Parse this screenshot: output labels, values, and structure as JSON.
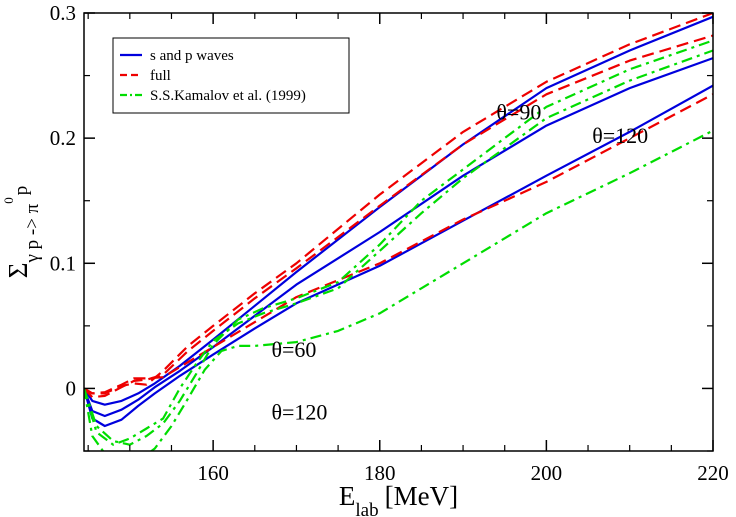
{
  "chart_data": {
    "type": "line",
    "xlabel": "E",
    "xlabel_sub": "lab",
    "xlabel_unit": "[MeV]",
    "ylabel_main": "Σ",
    "ylabel_sub": "γ p -> π",
    "ylabel_sup": "0",
    "ylabel_tail": "p",
    "xlim": [
      144.5,
      220
    ],
    "ylim": [
      -0.05,
      0.3
    ],
    "x_ticks": [
      160,
      180,
      200,
      220
    ],
    "x_tick_labels": [
      "160",
      "180",
      "200",
      "220"
    ],
    "y_ticks": [
      0,
      0.1,
      0.2,
      0.3
    ],
    "y_tick_labels": [
      "0",
      "0.1",
      "0.2",
      "0.3"
    ],
    "grid": false,
    "legend_position": "top-left",
    "legend": [
      {
        "label": "s and p waves",
        "color": "#0000dd",
        "style": "solid"
      },
      {
        "label": "full",
        "color": "#ee0000",
        "style": "dashed"
      },
      {
        "label": "S.S.Kamalov et al. (1999)",
        "color": "#00dd00",
        "style": "dashdot"
      }
    ],
    "annotations": [
      {
        "text": "θ=90",
        "at": [
          194,
          0.215
        ]
      },
      {
        "text": "θ=120",
        "at": [
          205.5,
          0.196
        ]
      },
      {
        "text": "θ=60",
        "at": [
          167,
          0.025
        ]
      },
      {
        "text": "θ=120",
        "at": [
          167,
          -0.025
        ]
      }
    ],
    "series": [
      {
        "name": "s and p waves",
        "group": "θ=90",
        "color": "#0000dd",
        "style": "solid",
        "x": [
          144.5,
          145.5,
          147,
          149,
          151,
          153,
          156,
          160,
          165,
          170,
          180,
          190,
          200,
          210,
          220
        ],
        "y": [
          0,
          -0.01,
          -0.013,
          -0.01,
          -0.004,
          0.004,
          0.018,
          0.039,
          0.066,
          0.093,
          0.145,
          0.195,
          0.24,
          0.27,
          0.297
        ]
      },
      {
        "name": "s and p waves",
        "group": "θ=60",
        "color": "#0000dd",
        "style": "solid",
        "x": [
          144.5,
          145.5,
          147,
          149,
          151,
          153,
          156,
          160,
          165,
          170,
          180,
          190,
          200,
          210,
          220
        ],
        "y": [
          0,
          -0.018,
          -0.022,
          -0.017,
          -0.009,
          0.001,
          0.014,
          0.033,
          0.058,
          0.083,
          0.125,
          0.17,
          0.21,
          0.24,
          0.264
        ]
      },
      {
        "name": "s and p waves",
        "group": "θ=120",
        "color": "#0000dd",
        "style": "solid",
        "x": [
          144.5,
          145.5,
          147,
          149,
          151,
          153,
          156,
          160,
          165,
          170,
          180,
          190,
          200,
          210,
          220
        ],
        "y": [
          0,
          -0.024,
          -0.03,
          -0.025,
          -0.014,
          -0.004,
          0.01,
          0.027,
          0.048,
          0.068,
          0.098,
          0.134,
          0.17,
          0.205,
          0.242
        ]
      },
      {
        "name": "full",
        "group": "θ=90",
        "color": "#ee0000",
        "style": "dashed",
        "x": [
          144.5,
          145.5,
          147,
          149,
          150.5,
          152,
          154,
          157,
          160,
          165,
          170,
          180,
          190,
          200,
          210,
          220
        ],
        "y": [
          0,
          -0.004,
          -0.004,
          0.002,
          0.004,
          0.003,
          0.014,
          0.034,
          0.05,
          0.076,
          0.1,
          0.155,
          0.205,
          0.245,
          0.275,
          0.3
        ]
      },
      {
        "name": "full",
        "group": "θ=60",
        "color": "#ee0000",
        "style": "dashed",
        "x": [
          144.5,
          145.5,
          147,
          149,
          150.5,
          152,
          154,
          157,
          160,
          165,
          170,
          180,
          190,
          200,
          210,
          220
        ],
        "y": [
          0,
          -0.007,
          -0.006,
          0.001,
          0.006,
          0.007,
          0.011,
          0.03,
          0.046,
          0.072,
          0.096,
          0.146,
          0.195,
          0.235,
          0.262,
          0.282
        ]
      },
      {
        "name": "full",
        "group": "θ=120",
        "color": "#ee0000",
        "style": "dashed",
        "x": [
          144.5,
          145.5,
          147,
          149,
          150.5,
          152,
          154,
          157,
          160,
          165,
          170,
          180,
          190,
          200,
          210,
          220
        ],
        "y": [
          0,
          -0.004,
          -0.003,
          0.003,
          0.008,
          0.008,
          0.009,
          0.021,
          0.033,
          0.053,
          0.073,
          0.1,
          0.135,
          0.165,
          0.2,
          0.235
        ]
      },
      {
        "name": "S.S.Kamalov et al. (1999)",
        "group": "θ=90",
        "color": "#00dd00",
        "style": "dashdot",
        "x": [
          144.5,
          146,
          148,
          150,
          152,
          154,
          156,
          158,
          160,
          163,
          166,
          170,
          175,
          180,
          185,
          190,
          195,
          200,
          210,
          220
        ],
        "y": [
          0,
          -0.03,
          -0.042,
          -0.045,
          -0.038,
          -0.028,
          -0.01,
          0.012,
          0.035,
          0.055,
          0.064,
          0.072,
          0.085,
          0.115,
          0.15,
          0.175,
          0.2,
          0.225,
          0.255,
          0.278
        ]
      },
      {
        "name": "S.S.Kamalov et al. (1999)",
        "group": "θ=60",
        "color": "#00dd00",
        "style": "dashdot",
        "x": [
          144.5,
          146,
          148,
          150,
          152,
          154,
          156,
          158,
          160,
          163,
          166,
          170,
          175,
          180,
          185,
          190,
          195,
          200,
          210,
          220
        ],
        "y": [
          0,
          -0.035,
          -0.045,
          -0.04,
          -0.032,
          -0.024,
          0.0,
          0.02,
          0.038,
          0.052,
          0.06,
          0.068,
          0.08,
          0.11,
          0.14,
          0.168,
          0.192,
          0.216,
          0.246,
          0.27
        ]
      },
      {
        "name": "S.S.Kamalov et al. (1999)",
        "group": "θ=120",
        "color": "#00dd00",
        "style": "dashdot",
        "x": [
          144.5,
          145.5,
          147,
          149,
          151,
          153,
          155,
          157,
          159,
          161,
          163,
          165,
          170,
          175,
          180,
          185,
          190,
          195,
          200,
          210,
          220
        ],
        "y": [
          0,
          -0.038,
          -0.052,
          -0.06,
          -0.058,
          -0.048,
          -0.03,
          -0.008,
          0.015,
          0.03,
          0.034,
          0.034,
          0.037,
          0.046,
          0.06,
          0.08,
          0.1,
          0.12,
          0.14,
          0.172,
          0.206
        ]
      }
    ]
  }
}
